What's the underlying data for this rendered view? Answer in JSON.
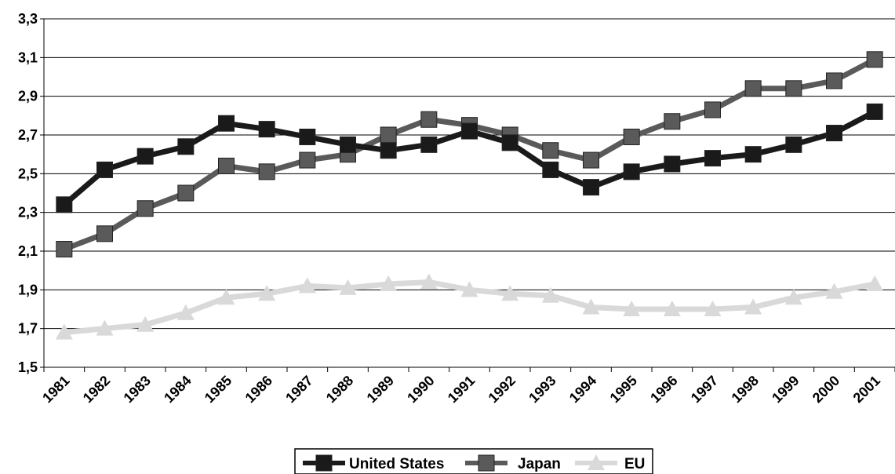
{
  "chart_data": {
    "type": "line",
    "x": [
      "1981",
      "1982",
      "1983",
      "1984",
      "1985",
      "1986",
      "1987",
      "1988",
      "1989",
      "1990",
      "1991",
      "1992",
      "1993",
      "1994",
      "1995",
      "1996",
      "1997",
      "1998",
      "1999",
      "2000",
      "2001"
    ],
    "ylim": [
      1.5,
      3.3
    ],
    "yticks": [
      "1,5",
      "1,7",
      "1,9",
      "2,1",
      "2,3",
      "2,5",
      "2,7",
      "2,9",
      "3,1",
      "3,3"
    ],
    "grid": "horizontal",
    "legend_position": "bottom",
    "series": [
      {
        "name": "United States",
        "color": "#1a1a1a",
        "marker": "square",
        "values": [
          2.34,
          2.52,
          2.59,
          2.64,
          2.76,
          2.73,
          2.69,
          2.65,
          2.62,
          2.65,
          2.72,
          2.66,
          2.52,
          2.43,
          2.51,
          2.55,
          2.58,
          2.6,
          2.65,
          2.71,
          2.82
        ]
      },
      {
        "name": "Japan",
        "color": "#5a5a5a",
        "marker": "square",
        "values": [
          2.11,
          2.19,
          2.32,
          2.4,
          2.54,
          2.51,
          2.57,
          2.6,
          2.7,
          2.78,
          2.75,
          2.7,
          2.62,
          2.57,
          2.69,
          2.77,
          2.83,
          2.94,
          2.94,
          2.98,
          3.09
        ]
      },
      {
        "name": "EU",
        "color": "#d9d9d9",
        "marker": "triangle",
        "values": [
          1.68,
          1.7,
          1.72,
          1.78,
          1.86,
          1.88,
          1.92,
          1.91,
          1.93,
          1.94,
          1.9,
          1.88,
          1.87,
          1.81,
          1.8,
          1.8,
          1.8,
          1.81,
          1.86,
          1.89,
          1.93
        ]
      }
    ]
  }
}
